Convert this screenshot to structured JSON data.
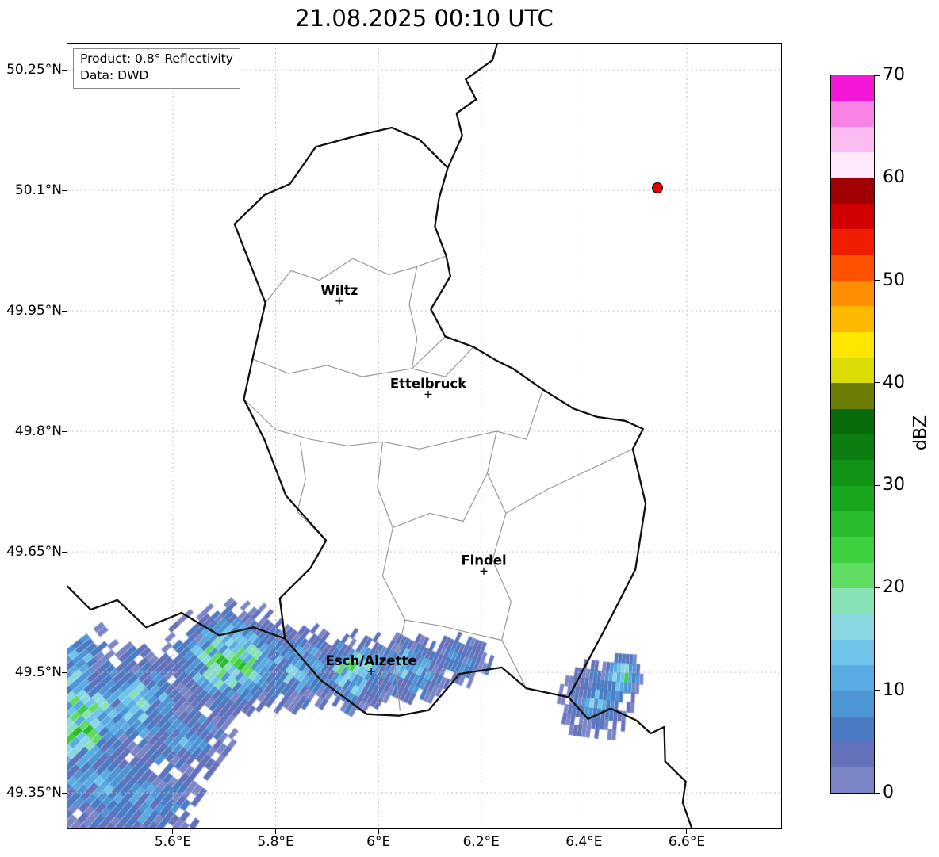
{
  "title": "21.08.2025 00:10 UTC",
  "info_box": {
    "line1": "Product: 0.8° Reflectivity",
    "line2": "Data: DWD"
  },
  "map": {
    "extent": {
      "lon_min": 5.3948,
      "lon_max": 6.7837,
      "lat_min": 49.3056,
      "lat_max": 50.2826
    },
    "lat_ticks": [
      {
        "label": "50.25°N",
        "value": 50.25
      },
      {
        "label": "50.1°N",
        "value": 50.1
      },
      {
        "label": "49.95°N",
        "value": 49.95
      },
      {
        "label": "49.8°N",
        "value": 49.8
      },
      {
        "label": "49.65°N",
        "value": 49.65
      },
      {
        "label": "49.5°N",
        "value": 49.5
      },
      {
        "label": "49.35°N",
        "value": 49.35
      }
    ],
    "lon_ticks": [
      {
        "label": "5.6°E",
        "value": 5.6
      },
      {
        "label": "5.8°E",
        "value": 5.8
      },
      {
        "label": "6°E",
        "value": 6.0
      },
      {
        "label": "6.2°E",
        "value": 6.2
      },
      {
        "label": "6.4°E",
        "value": 6.4
      },
      {
        "label": "6.6°E",
        "value": 6.6
      }
    ],
    "cities": [
      {
        "name": "Wiltz",
        "lon": 5.924,
        "lat": 49.962
      },
      {
        "name": "Ettelbruck",
        "lon": 6.097,
        "lat": 49.846
      },
      {
        "name": "Findel",
        "lon": 6.205,
        "lat": 49.626
      },
      {
        "name": "Esch/Alzette",
        "lon": 5.986,
        "lat": 49.501
      }
    ],
    "radar_site": {
      "lon": 6.543,
      "lat": 50.103,
      "color": "#e00000"
    },
    "borders": {
      "country": [
        [
          [
            6.231,
            50.2826
          ],
          [
            6.222,
            50.262
          ],
          [
            6.17,
            50.238
          ],
          [
            6.19,
            50.213
          ],
          [
            6.152,
            50.196
          ],
          [
            6.163,
            50.168
          ],
          [
            6.135,
            50.128
          ]
        ],
        [
          [
            6.135,
            50.128
          ],
          [
            6.118,
            50.09
          ],
          [
            6.11,
            50.055
          ],
          [
            6.132,
            50.018
          ],
          [
            6.14,
            49.993
          ],
          [
            6.102,
            49.952
          ],
          [
            6.13,
            49.918
          ],
          [
            6.185,
            49.905
          ],
          [
            6.23,
            49.888
          ],
          [
            6.262,
            49.878
          ],
          [
            6.32,
            49.852
          ],
          [
            6.38,
            49.828
          ],
          [
            6.425,
            49.818
          ],
          [
            6.48,
            49.813
          ],
          [
            6.515,
            49.803
          ],
          [
            6.495,
            49.778
          ],
          [
            6.52,
            49.71
          ],
          [
            6.5,
            49.628
          ],
          [
            6.44,
            49.553
          ],
          [
            6.37,
            49.469
          ],
          [
            6.288,
            49.48
          ],
          [
            6.24,
            49.506
          ],
          [
            6.158,
            49.498
          ],
          [
            6.098,
            49.453
          ],
          [
            6.04,
            49.446
          ],
          [
            5.977,
            49.448
          ],
          [
            5.888,
            49.49
          ],
          [
            5.818,
            49.542
          ],
          [
            5.808,
            49.592
          ],
          [
            5.868,
            49.63
          ],
          [
            5.898,
            49.664
          ],
          [
            5.82,
            49.72
          ],
          [
            5.778,
            49.79
          ],
          [
            5.738,
            49.84
          ],
          [
            5.755,
            49.89
          ],
          [
            5.78,
            49.96
          ],
          [
            5.72,
            50.058
          ],
          [
            5.778,
            50.094
          ],
          [
            5.828,
            50.108
          ],
          [
            5.878,
            50.154
          ],
          [
            5.958,
            50.168
          ],
          [
            6.026,
            50.178
          ],
          [
            6.08,
            50.163
          ],
          [
            6.135,
            50.128
          ]
        ],
        [
          [
            5.3948,
            49.607
          ],
          [
            5.44,
            49.578
          ],
          [
            5.492,
            49.59
          ],
          [
            5.548,
            49.556
          ],
          [
            5.617,
            49.574
          ],
          [
            5.69,
            49.546
          ],
          [
            5.757,
            49.556
          ],
          [
            5.818,
            49.542
          ]
        ],
        [
          [
            6.37,
            49.469
          ],
          [
            6.408,
            49.442
          ],
          [
            6.452,
            49.455
          ],
          [
            6.502,
            49.44
          ],
          [
            6.53,
            49.424
          ],
          [
            6.556,
            49.432
          ],
          [
            6.558,
            49.389
          ],
          [
            6.598,
            49.364
          ],
          [
            6.592,
            49.338
          ],
          [
            6.61,
            49.3056
          ]
        ]
      ],
      "regional": [
        [
          [
            5.78,
            49.96
          ],
          [
            5.83,
            50.0
          ],
          [
            5.885,
            49.988
          ],
          [
            5.95,
            50.015
          ],
          [
            6.02,
            49.995
          ],
          [
            6.075,
            50.005
          ],
          [
            6.132,
            50.018
          ]
        ],
        [
          [
            6.075,
            50.005
          ],
          [
            6.06,
            49.958
          ],
          [
            6.075,
            49.915
          ],
          [
            6.065,
            49.878
          ]
        ],
        [
          [
            5.755,
            49.89
          ],
          [
            5.825,
            49.872
          ],
          [
            5.9,
            49.882
          ],
          [
            5.968,
            49.868
          ],
          [
            6.065,
            49.878
          ],
          [
            6.13,
            49.918
          ]
        ],
        [
          [
            5.738,
            49.84
          ],
          [
            5.8,
            49.802
          ],
          [
            5.868,
            49.79
          ],
          [
            5.94,
            49.782
          ],
          [
            6.008,
            49.787
          ],
          [
            6.08,
            49.778
          ],
          [
            6.158,
            49.79
          ],
          [
            6.23,
            49.8
          ],
          [
            6.288,
            49.79
          ],
          [
            6.32,
            49.852
          ]
        ],
        [
          [
            5.848,
            49.786
          ],
          [
            5.858,
            49.74
          ],
          [
            5.842,
            49.7
          ],
          [
            5.898,
            49.664
          ]
        ],
        [
          [
            6.008,
            49.787
          ],
          [
            5.998,
            49.73
          ],
          [
            6.028,
            49.68
          ],
          [
            6.008,
            49.62
          ],
          [
            6.052,
            49.565
          ],
          [
            6.032,
            49.51
          ],
          [
            6.042,
            49.452
          ]
        ],
        [
          [
            6.23,
            49.8
          ],
          [
            6.212,
            49.748
          ],
          [
            6.248,
            49.698
          ],
          [
            6.222,
            49.64
          ],
          [
            6.258,
            49.588
          ],
          [
            6.24,
            49.54
          ],
          [
            6.288,
            49.48
          ]
        ],
        [
          [
            6.028,
            49.68
          ],
          [
            6.1,
            49.698
          ],
          [
            6.165,
            49.688
          ],
          [
            6.212,
            49.748
          ]
        ],
        [
          [
            6.052,
            49.565
          ],
          [
            6.12,
            49.558
          ],
          [
            6.185,
            49.548
          ],
          [
            6.24,
            49.54
          ]
        ],
        [
          [
            6.248,
            49.698
          ],
          [
            6.33,
            49.728
          ],
          [
            6.42,
            49.755
          ],
          [
            6.495,
            49.778
          ]
        ],
        [
          [
            6.065,
            49.878
          ],
          [
            6.13,
            49.868
          ],
          [
            6.185,
            49.905
          ]
        ]
      ]
    },
    "echo_field": [
      {
        "lon": 5.4,
        "lat": 49.435,
        "sx": 0.1,
        "sy": 0.055,
        "peak": 26
      },
      {
        "lon": 5.52,
        "lat": 49.46,
        "sx": 0.09,
        "sy": 0.05,
        "peak": 16
      },
      {
        "lon": 5.71,
        "lat": 49.515,
        "sx": 0.08,
        "sy": 0.042,
        "peak": 27
      },
      {
        "lon": 5.84,
        "lat": 49.505,
        "sx": 0.06,
        "sy": 0.035,
        "peak": 15
      },
      {
        "lon": 5.955,
        "lat": 49.5,
        "sx": 0.055,
        "sy": 0.03,
        "peak": 23
      },
      {
        "lon": 6.06,
        "lat": 49.505,
        "sx": 0.06,
        "sy": 0.028,
        "peak": 14
      },
      {
        "lon": 6.16,
        "lat": 49.515,
        "sx": 0.045,
        "sy": 0.022,
        "peak": 11
      },
      {
        "lon": 5.46,
        "lat": 49.365,
        "sx": 0.09,
        "sy": 0.05,
        "peak": 13
      },
      {
        "lon": 5.62,
        "lat": 49.42,
        "sx": 0.07,
        "sy": 0.04,
        "peak": 11
      },
      {
        "lon": 5.4,
        "lat": 49.5,
        "sx": 0.06,
        "sy": 0.05,
        "peak": 17
      },
      {
        "lon": 6.425,
        "lat": 49.465,
        "sx": 0.05,
        "sy": 0.033,
        "peak": 12
      },
      {
        "lon": 6.475,
        "lat": 49.495,
        "sx": 0.027,
        "sy": 0.018,
        "peak": 25
      },
      {
        "lon": 5.55,
        "lat": 49.335,
        "sx": 0.08,
        "sy": 0.04,
        "peak": 10
      }
    ]
  },
  "colorbar": {
    "label": "dBZ",
    "vmin": 0,
    "vmax": 70,
    "step_dbz": 2.5,
    "ticks": [
      0,
      10,
      20,
      30,
      40,
      50,
      60,
      70
    ],
    "colors": [
      "#7c86c7",
      "#6372bb",
      "#4b7cc3",
      "#4e95d5",
      "#59abe1",
      "#70c4ea",
      "#8ad8e2",
      "#87e2b5",
      "#60dc62",
      "#3ecf3f",
      "#2abc2c",
      "#18a71e",
      "#119315",
      "#0b7e0f",
      "#076b0a",
      "#6d7d03",
      "#dcdc05",
      "#ffe600",
      "#ffb800",
      "#ff8f00",
      "#ff5200",
      "#f01d00",
      "#d00000",
      "#a00000",
      "#fde9fb",
      "#fbbcf1",
      "#f984e6",
      "#f318d8"
    ]
  }
}
